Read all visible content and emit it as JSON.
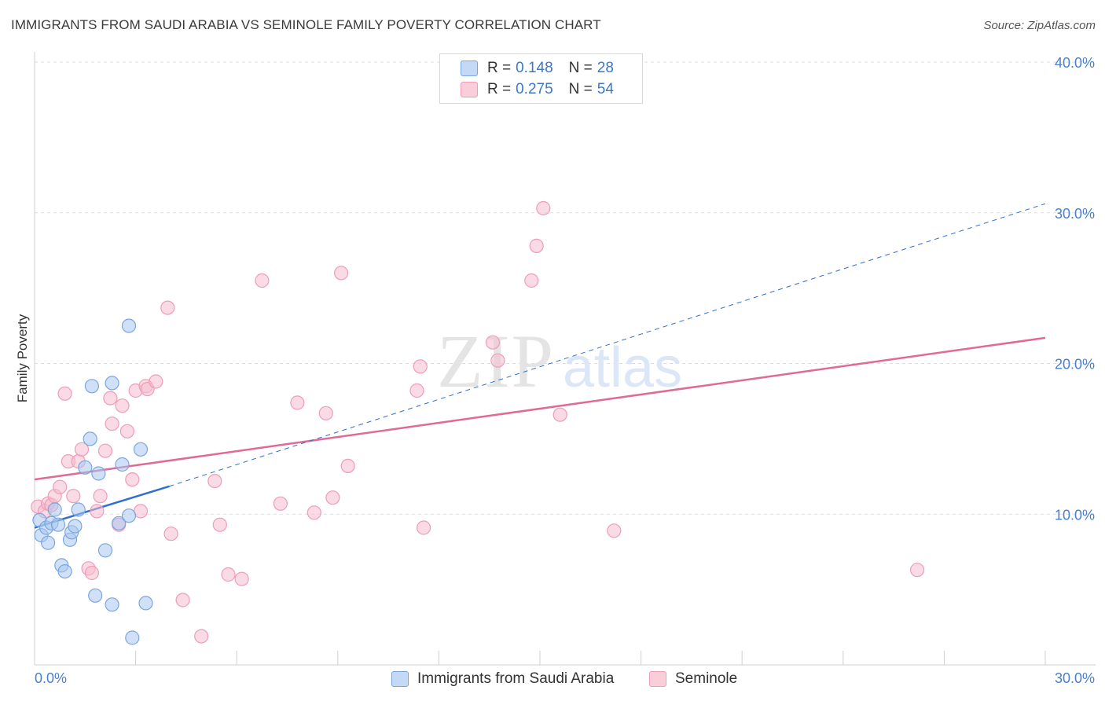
{
  "title": "IMMIGRANTS FROM SAUDI ARABIA VS SEMINOLE FAMILY POVERTY CORRELATION CHART",
  "source": "Source: ZipAtlas.com",
  "watermark": {
    "zip": "ZIP",
    "atlas": "atlas"
  },
  "colors": {
    "blue_fill": "#a9c8f0",
    "blue_stroke": "#7aa6e0",
    "blue_line": "#2f6fd0",
    "pink_fill": "#f6bccd",
    "pink_stroke": "#ee9db5",
    "pink_line": "#e06a95",
    "grid": "#dddddd",
    "axis_text": "#4a7fd0"
  },
  "legend": {
    "rows": [
      {
        "r_label": "R =",
        "r_value": "0.148",
        "n_label": "N =",
        "n_value": "28"
      },
      {
        "r_label": "R =",
        "r_value": "0.275",
        "n_label": "N =",
        "n_value": "54"
      }
    ]
  },
  "bottom_legend": [
    "Immigrants from Saudi Arabia",
    "Seminole"
  ],
  "chart_data": {
    "type": "scatter",
    "xlabel": "",
    "ylabel": "Family Poverty",
    "xlim": [
      0,
      30
    ],
    "ylim": [
      0,
      40
    ],
    "x_tick_labels": [
      "0.0%",
      "30.0%"
    ],
    "y_tick_labels": [
      "10.0%",
      "20.0%",
      "30.0%",
      "40.0%"
    ],
    "y_ticks": [
      10,
      20,
      30,
      40
    ],
    "series": [
      {
        "name": "Immigrants from Saudi Arabia",
        "R": 0.148,
        "N": 28,
        "points": [
          [
            0.15,
            9.6
          ],
          [
            0.2,
            8.6
          ],
          [
            0.35,
            9.1
          ],
          [
            0.4,
            8.1
          ],
          [
            0.6,
            10.3
          ],
          [
            0.5,
            9.4
          ],
          [
            0.7,
            9.3
          ],
          [
            0.8,
            6.6
          ],
          [
            0.9,
            6.2
          ],
          [
            1.05,
            8.3
          ],
          [
            1.1,
            8.8
          ],
          [
            1.2,
            9.2
          ],
          [
            1.3,
            10.3
          ],
          [
            1.5,
            13.1
          ],
          [
            1.65,
            15.0
          ],
          [
            1.7,
            18.5
          ],
          [
            1.8,
            4.6
          ],
          [
            1.9,
            12.7
          ],
          [
            2.1,
            7.6
          ],
          [
            2.3,
            4.0
          ],
          [
            2.3,
            18.7
          ],
          [
            2.5,
            9.4
          ],
          [
            2.6,
            13.3
          ],
          [
            2.8,
            9.9
          ],
          [
            2.8,
            22.5
          ],
          [
            2.9,
            1.8
          ],
          [
            3.15,
            14.3
          ],
          [
            3.3,
            4.1
          ]
        ],
        "trend_solid": [
          [
            0,
            9.1
          ],
          [
            4.0,
            11.85
          ]
        ],
        "trend_dashed": [
          [
            4.0,
            11.85
          ],
          [
            30.0,
            30.6
          ]
        ]
      },
      {
        "name": "Seminole",
        "R": 0.275,
        "N": 54,
        "points": [
          [
            0.1,
            10.5
          ],
          [
            0.3,
            10.2
          ],
          [
            0.4,
            10.7
          ],
          [
            0.5,
            10.6
          ],
          [
            0.6,
            11.2
          ],
          [
            0.75,
            11.8
          ],
          [
            0.9,
            18.0
          ],
          [
            1.0,
            13.5
          ],
          [
            1.15,
            11.2
          ],
          [
            1.3,
            13.5
          ],
          [
            1.4,
            14.3
          ],
          [
            1.6,
            6.4
          ],
          [
            1.7,
            6.1
          ],
          [
            1.85,
            10.2
          ],
          [
            1.95,
            11.2
          ],
          [
            2.1,
            14.2
          ],
          [
            2.25,
            17.7
          ],
          [
            2.3,
            16.0
          ],
          [
            2.5,
            9.3
          ],
          [
            2.6,
            17.2
          ],
          [
            2.75,
            15.5
          ],
          [
            2.9,
            12.3
          ],
          [
            3.0,
            18.2
          ],
          [
            3.15,
            10.2
          ],
          [
            3.3,
            18.5
          ],
          [
            3.35,
            18.3
          ],
          [
            3.6,
            18.8
          ],
          [
            3.95,
            23.7
          ],
          [
            4.05,
            8.7
          ],
          [
            4.4,
            4.3
          ],
          [
            4.95,
            1.9
          ],
          [
            5.35,
            12.2
          ],
          [
            5.5,
            9.3
          ],
          [
            5.75,
            6.0
          ],
          [
            6.15,
            5.7
          ],
          [
            6.75,
            25.5
          ],
          [
            7.3,
            10.7
          ],
          [
            7.8,
            17.4
          ],
          [
            8.3,
            10.1
          ],
          [
            8.65,
            16.7
          ],
          [
            8.85,
            11.1
          ],
          [
            9.1,
            26.0
          ],
          [
            9.3,
            13.2
          ],
          [
            11.35,
            18.2
          ],
          [
            11.45,
            19.8
          ],
          [
            11.55,
            9.1
          ],
          [
            13.6,
            21.4
          ],
          [
            13.75,
            20.2
          ],
          [
            14.75,
            25.5
          ],
          [
            14.9,
            27.8
          ],
          [
            15.1,
            30.3
          ],
          [
            15.6,
            16.6
          ],
          [
            17.2,
            8.9
          ],
          [
            26.2,
            6.3
          ]
        ],
        "trend_solid": [
          [
            0,
            12.3
          ],
          [
            30.0,
            21.7
          ]
        ]
      }
    ]
  }
}
